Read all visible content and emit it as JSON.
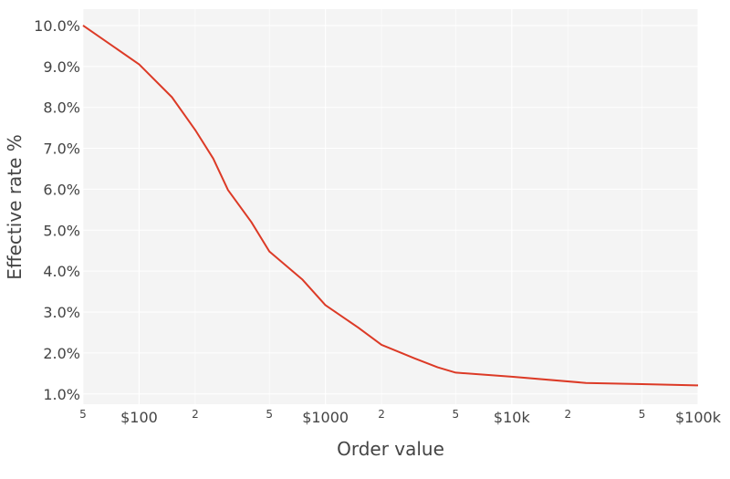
{
  "chart_data": {
    "type": "line",
    "title": "",
    "xlabel": "Order value",
    "ylabel": "Effective rate %",
    "x_scale": "log",
    "xlim": [
      50,
      100000
    ],
    "ylim": [
      0.75,
      10.4
    ],
    "grid": true,
    "background": "#f4f4f4",
    "x_ticks": [
      {
        "value": 50,
        "label": "5",
        "minor": true
      },
      {
        "value": 100,
        "label": "$100",
        "minor": false
      },
      {
        "value": 200,
        "label": "2",
        "minor": true
      },
      {
        "value": 500,
        "label": "5",
        "minor": true
      },
      {
        "value": 1000,
        "label": "$1000",
        "minor": false
      },
      {
        "value": 2000,
        "label": "2",
        "minor": true
      },
      {
        "value": 5000,
        "label": "5",
        "minor": true
      },
      {
        "value": 10000,
        "label": "$10k",
        "minor": false
      },
      {
        "value": 20000,
        "label": "2",
        "minor": true
      },
      {
        "value": 50000,
        "label": "5",
        "minor": true
      },
      {
        "value": 100000,
        "label": "$100k",
        "minor": false
      }
    ],
    "y_ticks": [
      {
        "value": 1,
        "label": "1.0%"
      },
      {
        "value": 2,
        "label": "2.0%"
      },
      {
        "value": 3,
        "label": "3.0%"
      },
      {
        "value": 4,
        "label": "4.0%"
      },
      {
        "value": 5,
        "label": "5.0%"
      },
      {
        "value": 6,
        "label": "6.0%"
      },
      {
        "value": 7,
        "label": "7.0%"
      },
      {
        "value": 8,
        "label": "8.0%"
      },
      {
        "value": 9,
        "label": "9.0%"
      },
      {
        "value": 10,
        "label": "10.0%"
      }
    ],
    "series": [
      {
        "color": "#dc3a26",
        "x": [
          50,
          100,
          150,
          200,
          250,
          300,
          400,
          500,
          750,
          1000,
          1500,
          2000,
          3000,
          4000,
          5000,
          10000,
          25000,
          50000,
          100000
        ],
        "y": [
          10.0,
          9.05,
          8.25,
          7.45,
          6.75,
          5.98,
          5.2,
          4.48,
          3.8,
          3.17,
          2.62,
          2.2,
          1.87,
          1.65,
          1.52,
          1.42,
          1.27,
          1.24,
          1.21
        ]
      }
    ]
  }
}
